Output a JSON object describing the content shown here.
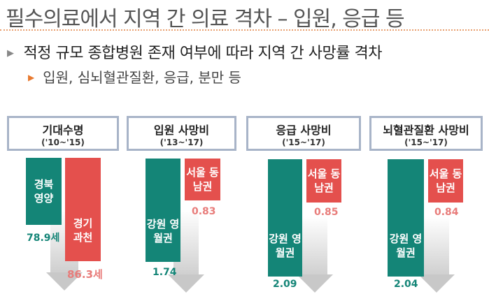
{
  "title": "필수의료에서 지역 간 의료 격차 – 입원, 응급 등",
  "bullet1": "적정 규모 종합병원 존재 여부에 따라 지역 간 사망률 격차",
  "bullet2": "입원, 심뇌혈관질환, 응급, 분만 등",
  "panels": [
    {
      "heading": "기대수명",
      "period": "('10~'15)",
      "low_label": "경북 영양",
      "low_value": "78.9세",
      "high_label": "경기 과천",
      "high_value": "86.3세"
    },
    {
      "heading": "입원 사망비",
      "period": "('13~'17)",
      "high_label": "강원 영월권",
      "high_value": "1.74",
      "low_label": "서울 동남권",
      "low_value": "0.83"
    },
    {
      "heading": "응급 사망비",
      "period": "('15~'17)",
      "high_label": "강원 영월권",
      "high_value": "2.09",
      "low_label": "서울 동남권",
      "low_value": "0.85"
    },
    {
      "heading": "뇌혈관질환 사망비",
      "period": "('15~'17)",
      "high_label": "강원 영월권",
      "high_value": "2.04",
      "low_label": "서울 동남권",
      "low_value": "0.84"
    }
  ],
  "colors": {
    "teal": "#148577",
    "red": "#e4504d"
  }
}
